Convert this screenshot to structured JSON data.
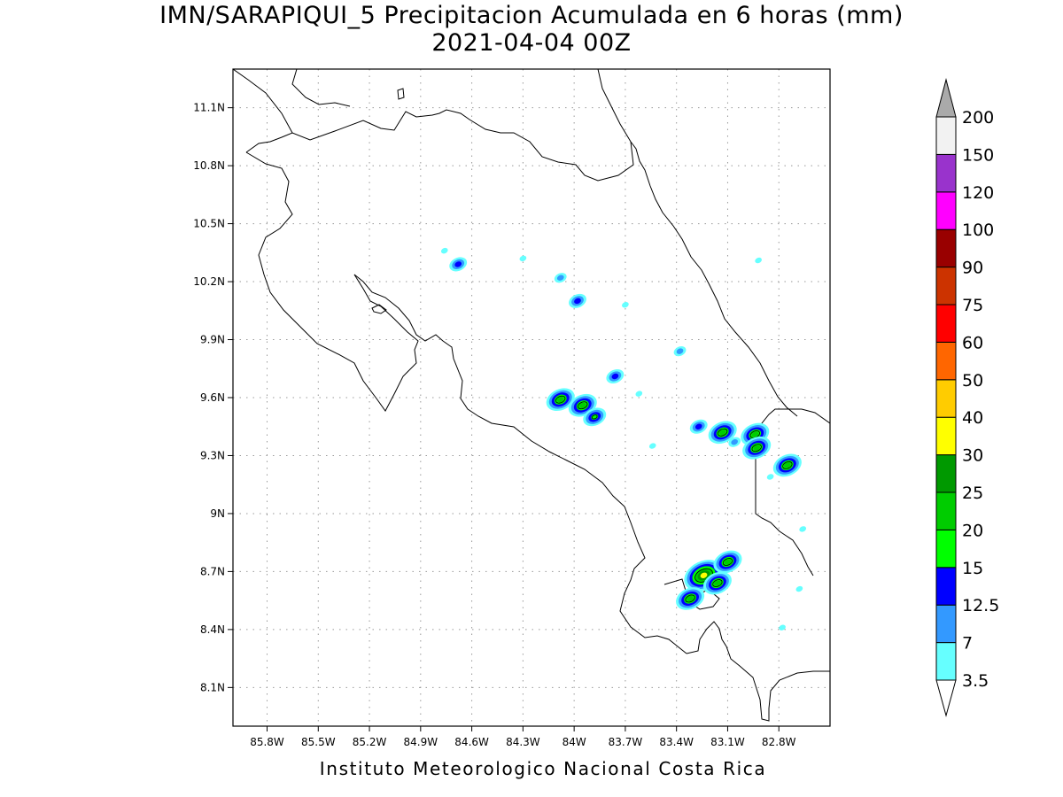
{
  "title": {
    "line1": "IMN/SARAPIQUI_5 Precipitacion Acumulada en 6 horas (mm)",
    "line2": "2021-04-04 00Z"
  },
  "footer": "Instituto Meteorologico Nacional Costa Rica",
  "map": {
    "lon_range": [
      -86.0,
      -82.5
    ],
    "lat_range": [
      7.9,
      11.3
    ],
    "lon_ticks": [
      -85.8,
      -85.5,
      -85.2,
      -84.9,
      -84.6,
      -84.3,
      -84.0,
      -83.7,
      -83.4,
      -83.1,
      -82.8
    ],
    "lat_ticks": [
      8.1,
      8.4,
      8.7,
      9.0,
      9.3,
      9.6,
      9.9,
      10.2,
      10.5,
      10.8,
      11.1
    ],
    "lon_tick_labels": [
      "85.8W",
      "85.5W",
      "85.2W",
      "84.9W",
      "84.6W",
      "84.3W",
      "84W",
      "83.7W",
      "83.4W",
      "83.1W",
      "82.8W"
    ],
    "lat_tick_labels": [
      "8.1N",
      "8.4N",
      "8.7N",
      "9N",
      "9.3N",
      "9.6N",
      "9.9N",
      "10.2N",
      "10.5N",
      "10.8N",
      "11.1N"
    ],
    "grid": "dotted"
  },
  "colorbar": {
    "labels": [
      "3.5",
      "7",
      "12.5",
      "15",
      "20",
      "25",
      "30",
      "40",
      "50",
      "60",
      "75",
      "90",
      "100",
      "120",
      "150",
      "200"
    ],
    "colors": [
      "#ffffff",
      "#66ffff",
      "#3399ff",
      "#0000ff",
      "#00ff00",
      "#00cc00",
      "#009900",
      "#ffff00",
      "#ffcc00",
      "#ff6600",
      "#ff0000",
      "#cc3300",
      "#990000",
      "#ff00ff",
      "#9933cc",
      "#f2f2f2",
      "#aaaaaa"
    ]
  },
  "precip_cells": [
    {
      "lon": -84.68,
      "lat": 10.29,
      "level": 3
    },
    {
      "lon": -84.76,
      "lat": 10.36,
      "level": 1
    },
    {
      "lon": -84.3,
      "lat": 10.32,
      "level": 1
    },
    {
      "lon": -84.08,
      "lat": 10.22,
      "level": 2
    },
    {
      "lon": -83.98,
      "lat": 10.1,
      "level": 3
    },
    {
      "lon": -83.7,
      "lat": 10.08,
      "level": 1
    },
    {
      "lon": -83.38,
      "lat": 9.84,
      "level": 2
    },
    {
      "lon": -82.92,
      "lat": 10.31,
      "level": 1
    },
    {
      "lon": -83.76,
      "lat": 9.71,
      "level": 3
    },
    {
      "lon": -83.62,
      "lat": 9.62,
      "level": 1
    },
    {
      "lon": -84.08,
      "lat": 9.59,
      "level": 5
    },
    {
      "lon": -83.95,
      "lat": 9.56,
      "level": 5
    },
    {
      "lon": -83.88,
      "lat": 9.5,
      "level": 4
    },
    {
      "lon": -83.27,
      "lat": 9.45,
      "level": 3
    },
    {
      "lon": -83.13,
      "lat": 9.42,
      "level": 5
    },
    {
      "lon": -83.06,
      "lat": 9.37,
      "level": 2
    },
    {
      "lon": -82.94,
      "lat": 9.41,
      "level": 5
    },
    {
      "lon": -82.93,
      "lat": 9.34,
      "level": 5
    },
    {
      "lon": -82.75,
      "lat": 9.25,
      "level": 5
    },
    {
      "lon": -82.85,
      "lat": 9.19,
      "level": 1
    },
    {
      "lon": -82.66,
      "lat": 8.92,
      "level": 1
    },
    {
      "lon": -83.24,
      "lat": 8.68,
      "level": 7
    },
    {
      "lon": -83.1,
      "lat": 8.75,
      "level": 5
    },
    {
      "lon": -83.16,
      "lat": 8.64,
      "level": 5
    },
    {
      "lon": -83.32,
      "lat": 8.56,
      "level": 5
    },
    {
      "lon": -82.68,
      "lat": 8.61,
      "level": 1
    },
    {
      "lon": -82.78,
      "lat": 8.41,
      "level": 1
    },
    {
      "lon": -83.54,
      "lat": 9.35,
      "level": 1
    }
  ]
}
